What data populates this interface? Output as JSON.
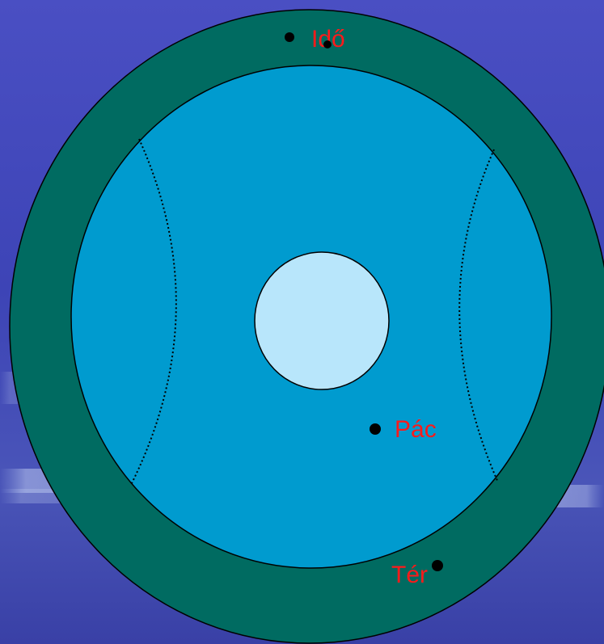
{
  "colors": {
    "background_top": "#3d48b9",
    "background_bottom": "#3a42a8",
    "outer_ring": "#006b61",
    "inner_disc": "#009bcf",
    "center_disc": "#b8e6fb",
    "outline": "#000000",
    "label_text": "#ff1a1a",
    "point_marker": "#000000"
  },
  "diagram": {
    "labels": {
      "ido": "Idő",
      "pac": "Pác",
      "ter": "Tér"
    }
  }
}
